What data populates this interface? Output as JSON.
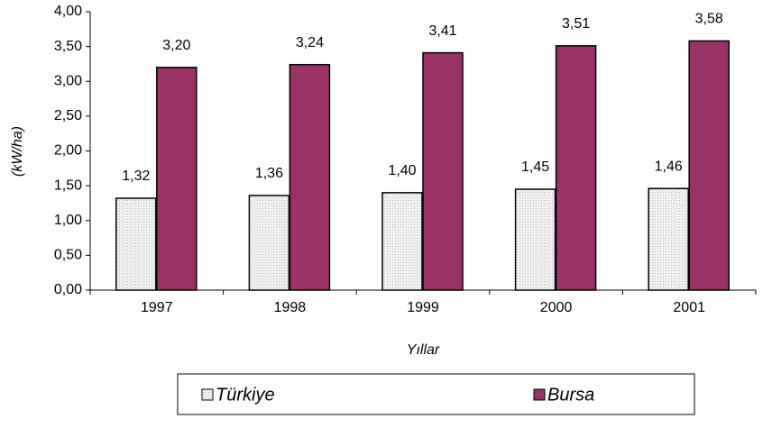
{
  "chart_data": {
    "type": "bar",
    "x_label": "Yıllar",
    "y_label": "(kW/ha)",
    "categories": [
      "1997",
      "1998",
      "1999",
      "2000",
      "2001"
    ],
    "series": [
      {
        "name": "Türkiye",
        "color": "#a0a0a0",
        "values": [
          1.32,
          1.36,
          1.4,
          1.45,
          1.46
        ],
        "value_labels": [
          "1,32",
          "1,36",
          "1,40",
          "1,45",
          "1,46"
        ]
      },
      {
        "name": "Bursa",
        "color": "#993366",
        "values": [
          3.2,
          3.24,
          3.41,
          3.51,
          3.58
        ],
        "value_labels": [
          "3,20",
          "3,24",
          "3,41",
          "3,51",
          "3,58"
        ]
      }
    ],
    "ylim": [
      0,
      4
    ],
    "yticks": [
      {
        "value": 0,
        "label": "0,00"
      },
      {
        "value": 0.5,
        "label": "0,50"
      },
      {
        "value": 1,
        "label": "1,00"
      },
      {
        "value": 1.5,
        "label": "1,50"
      },
      {
        "value": 2,
        "label": "2,00"
      },
      {
        "value": 2.5,
        "label": "2,50"
      },
      {
        "value": 3,
        "label": "3,00"
      },
      {
        "value": 3.5,
        "label": "3,50"
      },
      {
        "value": 4,
        "label": "4,00"
      }
    ],
    "legend": "bottom"
  }
}
